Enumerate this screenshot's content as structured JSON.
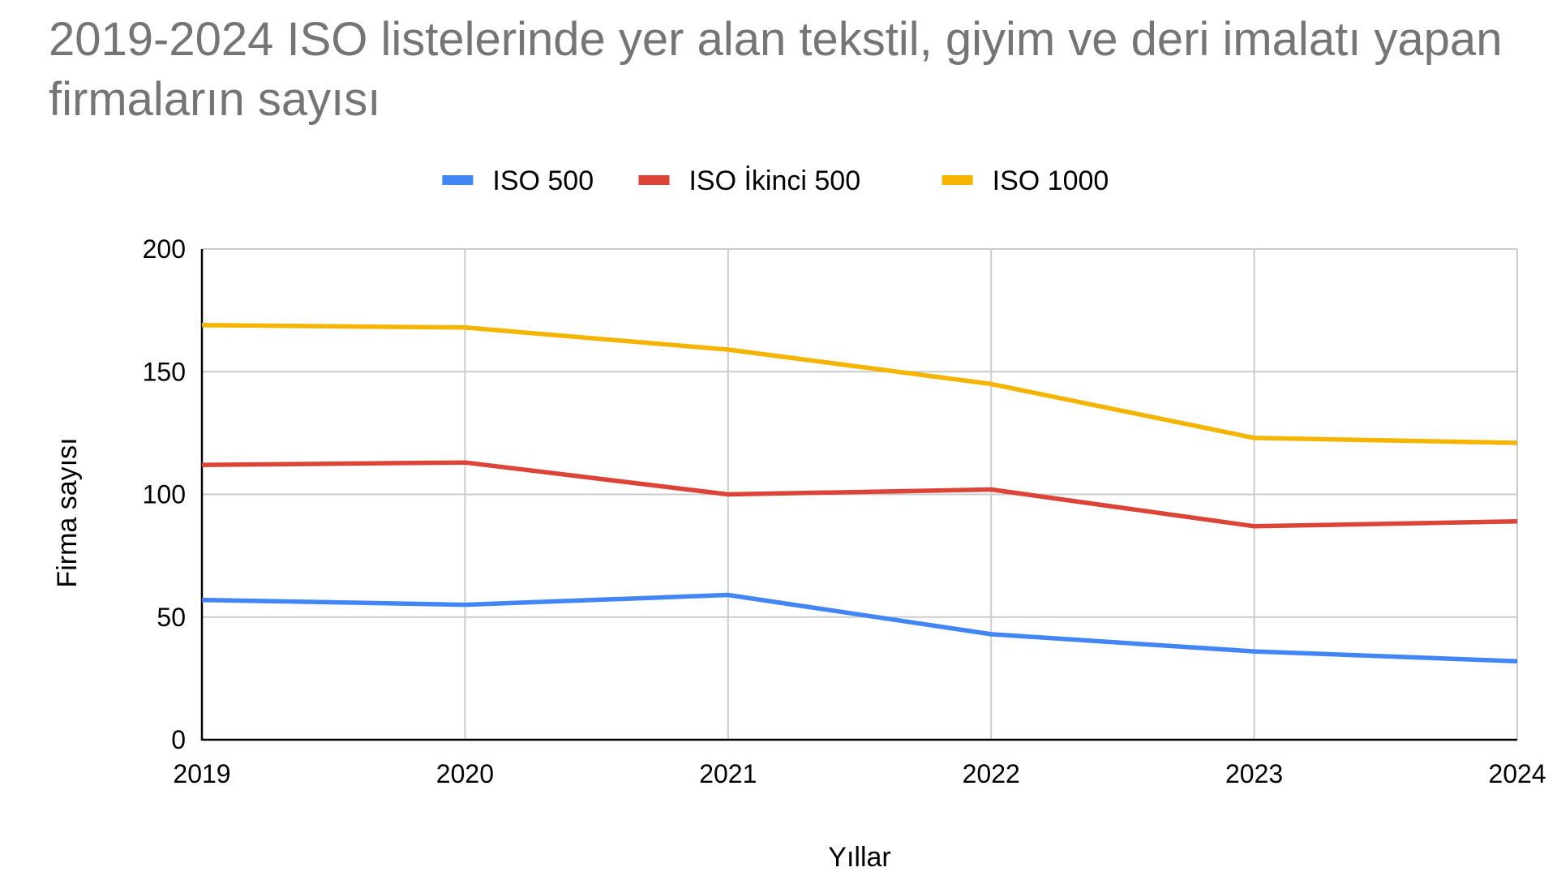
{
  "chart_data": {
    "type": "line",
    "title": "2019-2024 ISO listelerinde yer alan tekstil, giyim ve deri imalatı yapan firmaların sayısı",
    "xlabel": "Yıllar",
    "ylabel": "Firma sayısı",
    "categories": [
      "2019",
      "2020",
      "2021",
      "2022",
      "2023",
      "2024"
    ],
    "ylim": [
      0,
      200
    ],
    "yticks": [
      0,
      50,
      100,
      150,
      200
    ],
    "grid": true,
    "legend_position": "top",
    "series": [
      {
        "name": "ISO 500",
        "color": "#4285f4",
        "values": [
          57,
          55,
          59,
          43,
          36,
          32
        ]
      },
      {
        "name": "ISO İkinci 500",
        "color": "#db4437",
        "values": [
          112,
          113,
          100,
          102,
          87,
          89
        ]
      },
      {
        "name": "ISO 1000",
        "color": "#f4b400",
        "values": [
          169,
          168,
          159,
          145,
          123,
          121
        ]
      }
    ]
  }
}
